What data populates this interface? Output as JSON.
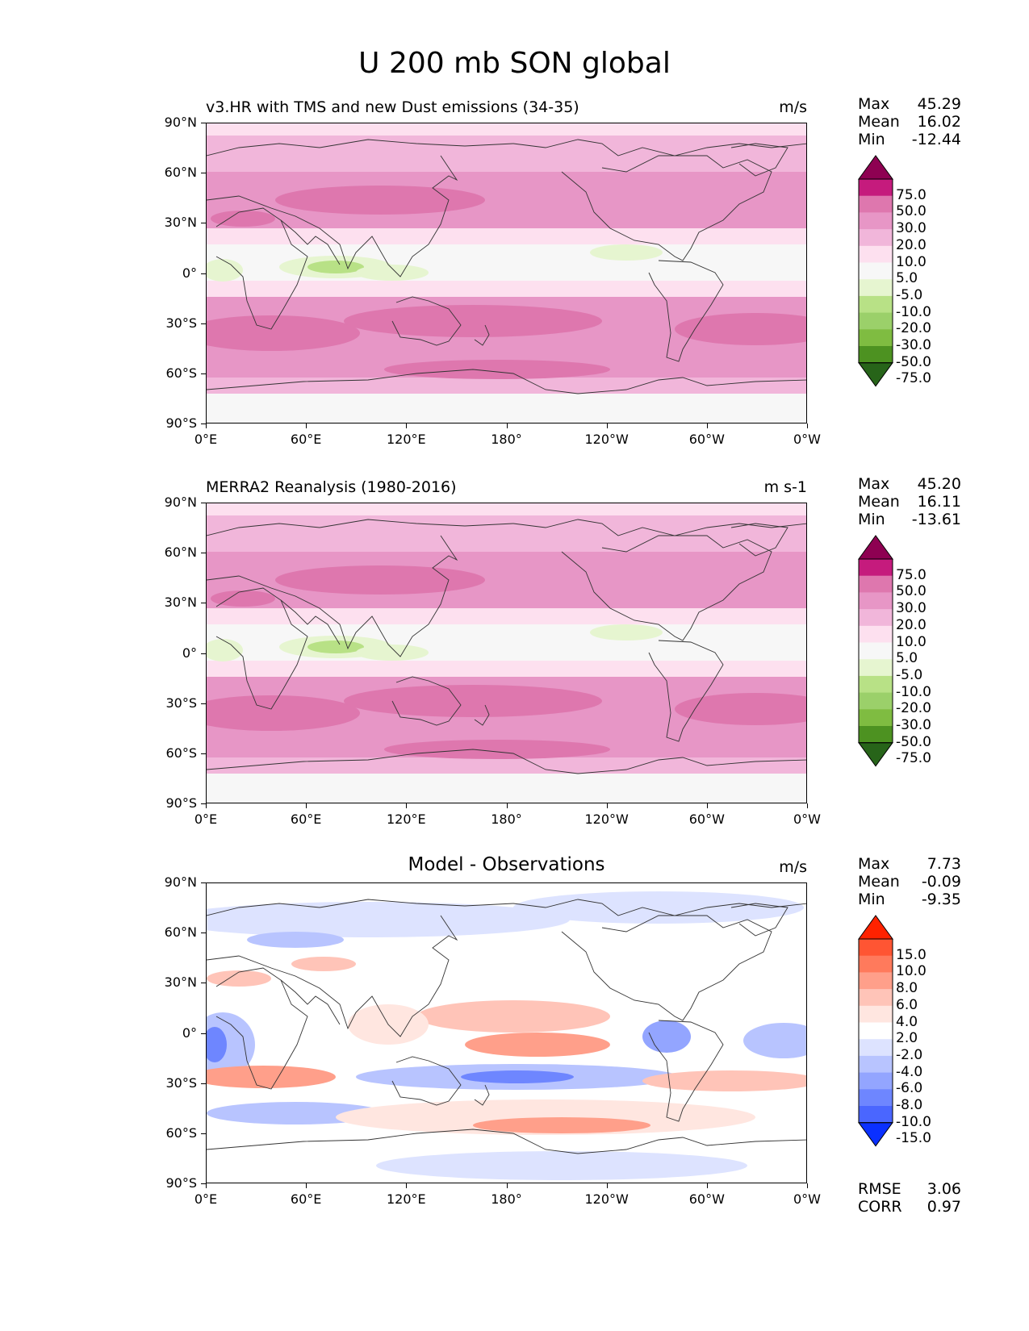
{
  "figure_title": "U 200 mb SON global",
  "x_ticks": [
    "0°E",
    "60°E",
    "120°E",
    "180°",
    "120°W",
    "60°W",
    "0°W"
  ],
  "y_ticks": [
    "90°N",
    "60°N",
    "30°N",
    "0°",
    "30°S",
    "60°S",
    "90°S"
  ],
  "panels": [
    {
      "title": "v3.HR with TMS and new Dust emissions (34-35)",
      "units": "m/s",
      "stats": [
        [
          "Max",
          "45.29"
        ],
        [
          "Mean",
          "16.02"
        ],
        [
          "Min",
          "-12.44"
        ]
      ],
      "colorbar_labels": [
        "75.0",
        "50.0",
        "30.0",
        "20.0",
        "10.0",
        "5.0",
        "-5.0",
        "-10.0",
        "-20.0",
        "-30.0",
        "-50.0",
        "-75.0"
      ]
    },
    {
      "title": "MERRA2 Reanalysis (1980-2016)",
      "units": "m s-1",
      "stats": [
        [
          "Max",
          "45.20"
        ],
        [
          "Mean",
          "16.11"
        ],
        [
          "Min",
          "-13.61"
        ]
      ],
      "colorbar_labels": [
        "75.0",
        "50.0",
        "30.0",
        "20.0",
        "10.0",
        "5.0",
        "-5.0",
        "-10.0",
        "-20.0",
        "-30.0",
        "-50.0",
        "-75.0"
      ]
    },
    {
      "title": "Model - Observations",
      "units": "m/s",
      "stats": [
        [
          "Max",
          "7.73"
        ],
        [
          "Mean",
          "-0.09"
        ],
        [
          "Min",
          "-9.35"
        ]
      ],
      "colorbar_labels": [
        "15.0",
        "10.0",
        "8.0",
        "6.0",
        "4.0",
        "2.0",
        "-2.0",
        "-4.0",
        "-6.0",
        "-8.0",
        "-10.0",
        "-15.0"
      ],
      "metrics": [
        [
          "RMSE",
          "3.06"
        ],
        [
          "CORR",
          "0.97"
        ]
      ]
    }
  ],
  "colors": {
    "pink_scale": [
      "#8e0152",
      "#c51b7d",
      "#de77ae",
      "#e796c6",
      "#f1b6da",
      "#fde0ef",
      "#f7f7f7",
      "#e6f5d0",
      "#b8e186",
      "#9bd06a",
      "#7fbc41",
      "#4d9221",
      "#276419"
    ],
    "diff_scale": [
      "#ff2200",
      "#ff5533",
      "#ff7a5c",
      "#ff9f8a",
      "#ffc4b8",
      "#ffe6e0",
      "#ffffff",
      "#dde3ff",
      "#b8c4ff",
      "#93a5ff",
      "#6e86ff",
      "#4a66ff",
      "#0a30ff"
    ]
  }
}
